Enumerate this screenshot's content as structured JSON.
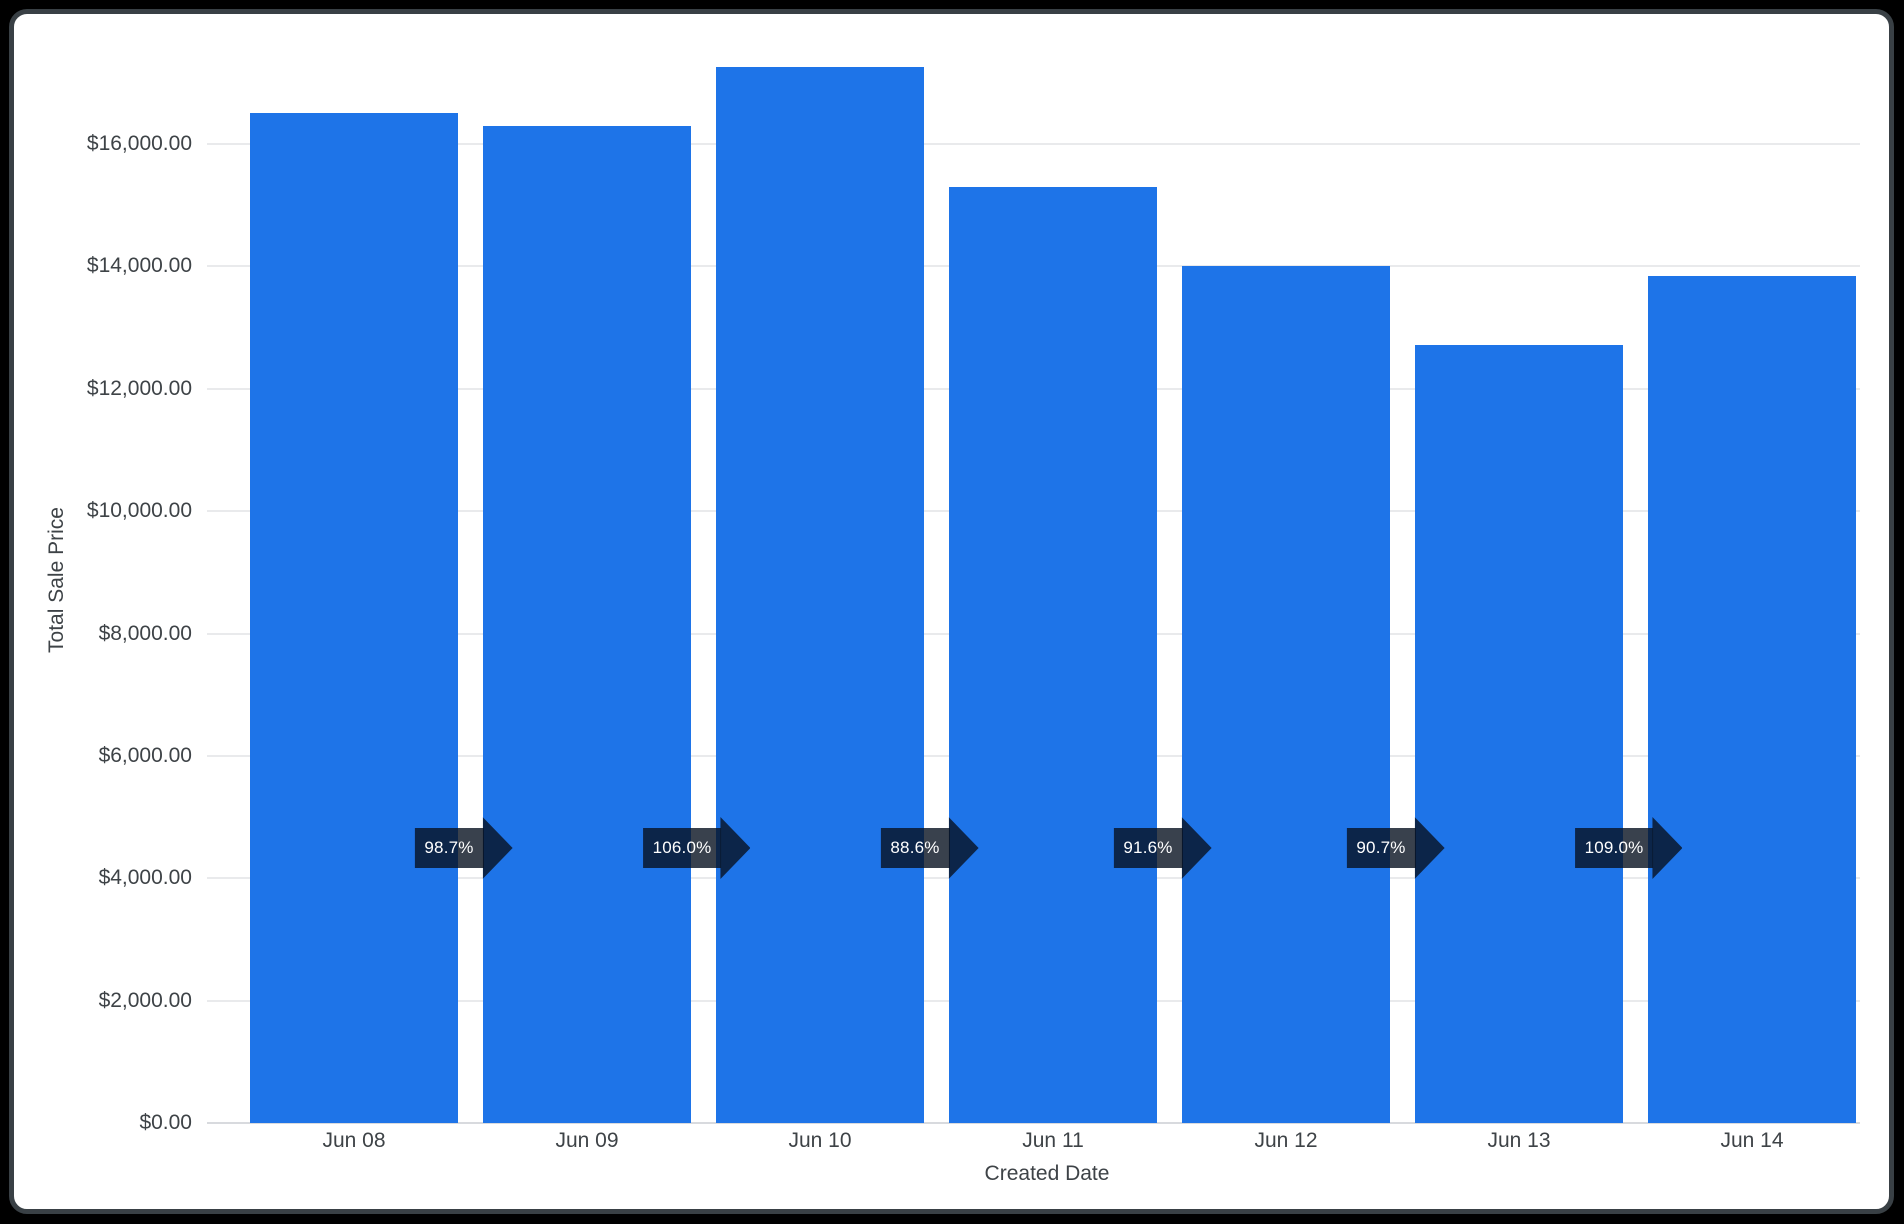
{
  "window": {
    "background_color": "#000000",
    "panel_border_color": "#394045",
    "panel_background_color": "#ffffff"
  },
  "chart_data": {
    "type": "bar",
    "title": "",
    "xlabel": "Created Date",
    "ylabel": "Total Sale Price",
    "categories": [
      "Jun 08",
      "Jun 09",
      "Jun 10",
      "Jun 11",
      "Jun 12",
      "Jun 13",
      "Jun 14"
    ],
    "values": [
      16500,
      16290,
      17260,
      15300,
      14010,
      12710,
      13850
    ],
    "growth_arrow_labels": [
      "98.7%",
      "106.0%",
      "88.6%",
      "91.6%",
      "90.7%",
      "109.0%"
    ],
    "y_ticks": [
      {
        "value": 0,
        "label": "$0.00"
      },
      {
        "value": 2000,
        "label": "$2,000.00"
      },
      {
        "value": 4000,
        "label": "$4,000.00"
      },
      {
        "value": 6000,
        "label": "$6,000.00"
      },
      {
        "value": 8000,
        "label": "$8,000.00"
      },
      {
        "value": 10000,
        "label": "$10,000.00"
      },
      {
        "value": 12000,
        "label": "$12,000.00"
      },
      {
        "value": 14000,
        "label": "$14,000.00"
      },
      {
        "value": 16000,
        "label": "$16,000.00"
      },
      {
        "value": 18000,
        "label": ""
      }
    ],
    "ylim": [
      0,
      17600
    ],
    "grid": true,
    "legend": "none",
    "bar_color": "#1e74e8",
    "arrow_overlay_color": "rgba(8,17,32,0.8)",
    "gridline_color": "#e9eaec",
    "zero_line_color": "#d8dade",
    "label_color": "#3e4347"
  }
}
